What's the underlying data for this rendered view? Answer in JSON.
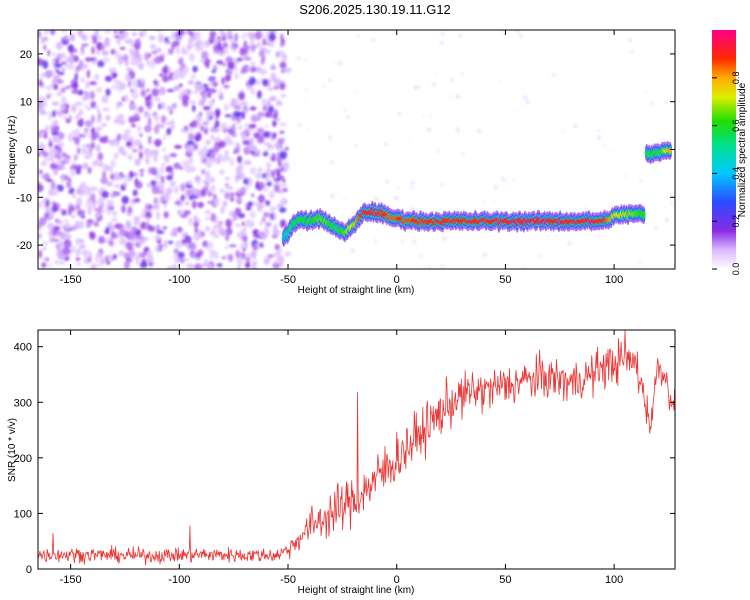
{
  "figure": {
    "title": "S206.2025.130.19.11.G12"
  },
  "chart_data": [
    {
      "type": "heatmap",
      "xlabel": "Height of straight line (km)",
      "ylabel": "Frequency (Hz)",
      "xlim": [
        -165,
        128
      ],
      "ylim": [
        -25,
        25
      ],
      "xticks": [
        -150,
        -100,
        -50,
        0,
        50,
        100
      ],
      "yticks": [
        -20,
        -10,
        0,
        10,
        20
      ],
      "grid": false,
      "colorbar": {
        "label": "Normalized spectral amplitude",
        "range": [
          0,
          1
        ],
        "ticks": [
          0.0,
          0.2,
          0.4,
          0.6,
          0.8
        ],
        "tick_labels": [
          "0.0",
          "0.2",
          "0.4",
          "0.6",
          "0.8"
        ],
        "colormap": "rainbow (purple → blue → cyan → green → yellow → red → magenta)"
      },
      "noise_region": {
        "x": [
          -165,
          -50
        ],
        "amplitude": 0.15
      },
      "main_trace": {
        "x": [
          -52,
          -48,
          -44,
          -40,
          -36,
          -32,
          -28,
          -24,
          -20,
          -16,
          -12,
          -8,
          -4,
          0,
          10,
          20,
          30,
          40,
          50,
          60,
          70,
          80,
          90,
          95,
          100,
          105,
          110,
          114
        ],
        "freq_hz": [
          -18.5,
          -16,
          -14.5,
          -15,
          -14.5,
          -15,
          -16.5,
          -17.5,
          -16,
          -13.5,
          -13,
          -13.2,
          -14,
          -14.5,
          -15,
          -15,
          -15,
          -15,
          -15,
          -15,
          -15,
          -15,
          -15,
          -15,
          -14,
          -13.5,
          -13.5,
          -13.5
        ],
        "amplitude": [
          0.35,
          0.5,
          0.55,
          0.55,
          0.6,
          0.6,
          0.5,
          0.6,
          0.7,
          0.85,
          0.9,
          0.85,
          0.8,
          0.8,
          0.82,
          0.85,
          0.85,
          0.86,
          0.9,
          0.92,
          0.9,
          0.88,
          0.9,
          0.85,
          0.7,
          0.65,
          0.6,
          0.55
        ]
      },
      "secondary_trace": {
        "x": [
          115,
          118,
          121,
          124,
          126
        ],
        "freq_hz": [
          -1,
          -1,
          -0.5,
          0,
          0
        ],
        "amplitude": [
          0.5,
          0.55,
          0.5,
          0.7,
          0.75
        ]
      }
    },
    {
      "type": "line",
      "xlabel": "Height of straight line (km)",
      "ylabel": "SNR (10 * v/v)",
      "xlim": [
        -165,
        128
      ],
      "ylim": [
        0,
        430
      ],
      "xticks": [
        -150,
        -100,
        -50,
        0,
        50,
        100
      ],
      "yticks": [
        0,
        100,
        200,
        300,
        400
      ],
      "grid": false,
      "series": [
        {
          "color": "#ee3333",
          "x": [
            -165,
            -150,
            -130,
            -110,
            -90,
            -70,
            -55,
            -50,
            -45,
            -40,
            -35,
            -30,
            -25,
            -20,
            -15,
            -10,
            -5,
            0,
            5,
            10,
            15,
            20,
            25,
            30,
            35,
            40,
            50,
            60,
            70,
            80,
            90,
            95,
            100,
            105,
            110,
            112,
            115,
            117,
            120,
            123,
            126,
            128
          ],
          "values": [
            25,
            26,
            25,
            24,
            26,
            25,
            25,
            35,
            55,
            75,
            90,
            100,
            110,
            125,
            140,
            160,
            180,
            200,
            220,
            240,
            260,
            280,
            300,
            310,
            320,
            320,
            330,
            340,
            345,
            335,
            350,
            365,
            370,
            375,
            370,
            340,
            290,
            260,
            370,
            350,
            310,
            300
          ],
          "noise_amplitude": [
            12,
            12,
            12,
            12,
            12,
            12,
            12,
            14,
            20,
            30,
            35,
            40,
            40,
            40,
            40,
            40,
            45,
            45,
            40,
            40,
            40,
            40,
            40,
            35,
            35,
            35,
            35,
            35,
            35,
            35,
            35,
            35,
            35,
            35,
            35,
            30,
            30,
            25,
            25,
            25,
            25,
            25
          ],
          "spikes": [
            {
              "x": -18,
              "value": 318
            },
            {
              "x": -95,
              "value": 78
            },
            {
              "x": -158,
              "value": 65
            },
            {
              "x": 105,
              "value": 430
            }
          ]
        }
      ]
    }
  ]
}
